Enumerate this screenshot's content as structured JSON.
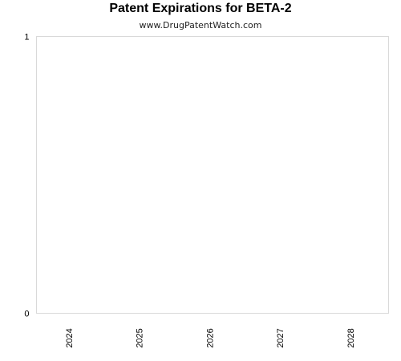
{
  "chart_data": {
    "type": "bar",
    "title": "Patent Expirations for BETA-2",
    "subtitle": "www.DrugPatentWatch.com",
    "categories": [
      "2024",
      "2025",
      "2026",
      "2027",
      "2028"
    ],
    "values": [
      0,
      0,
      0,
      0,
      0
    ],
    "xlabel": "",
    "ylabel": "",
    "ylim": [
      0,
      1
    ],
    "yticks": [
      "0",
      "1"
    ],
    "grid": false,
    "legend": "none"
  }
}
